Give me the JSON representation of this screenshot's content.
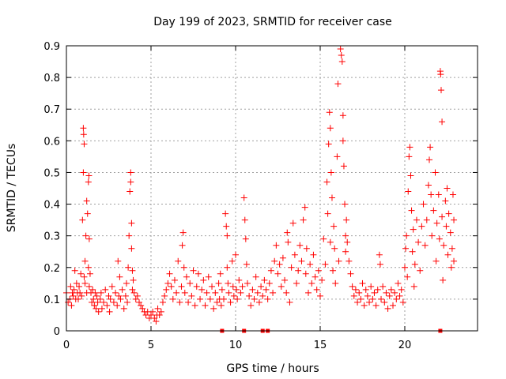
{
  "chart_data": {
    "type": "scatter",
    "title": "Day 199 of 2023, SRMTID for receiver case",
    "xlabel": "GPS time / hours",
    "ylabel": "SRMTID / TECUs",
    "xlim": [
      0,
      24.3
    ],
    "ylim": [
      0,
      0.9
    ],
    "xticks": [
      0,
      5,
      10,
      15,
      20
    ],
    "xtick_labels": [
      "0",
      "5",
      "10",
      "15",
      "20"
    ],
    "yticks": [
      0,
      0.1,
      0.2,
      0.3,
      0.4,
      0.5,
      0.6,
      0.7,
      0.8,
      0.9
    ],
    "ytick_labels": [
      "0",
      "0.1",
      "0.2",
      "0.3",
      "0.4",
      "0.5",
      "0.6",
      "0.7",
      "0.8",
      "0.9"
    ],
    "grid": true,
    "marker": "+",
    "color": "#ff0000",
    "series": [
      {
        "name": "SRMTID",
        "points": [
          [
            0.0,
            0.12
          ],
          [
            0.1,
            0.09
          ],
          [
            0.2,
            0.1
          ],
          [
            0.25,
            0.14
          ],
          [
            0.3,
            0.08
          ],
          [
            0.35,
            0.12
          ],
          [
            0.4,
            0.11
          ],
          [
            0.45,
            0.13
          ],
          [
            0.5,
            0.19
          ],
          [
            0.55,
            0.1
          ],
          [
            0.6,
            0.15
          ],
          [
            0.65,
            0.12
          ],
          [
            0.7,
            0.1
          ],
          [
            0.75,
            0.14
          ],
          [
            0.8,
            0.12
          ],
          [
            0.85,
            0.18
          ],
          [
            0.9,
            0.11
          ],
          [
            0.95,
            0.35
          ],
          [
            1.0,
            0.5
          ],
          [
            1.0,
            0.64
          ],
          [
            1.02,
            0.62
          ],
          [
            1.05,
            0.59
          ],
          [
            1.05,
            0.17
          ],
          [
            1.1,
            0.22
          ],
          [
            1.1,
            0.15
          ],
          [
            1.15,
            0.3
          ],
          [
            1.2,
            0.41
          ],
          [
            1.2,
            0.12
          ],
          [
            1.25,
            0.37
          ],
          [
            1.3,
            0.47
          ],
          [
            1.3,
            0.2
          ],
          [
            1.33,
            0.49
          ],
          [
            1.35,
            0.29
          ],
          [
            1.35,
            0.14
          ],
          [
            1.4,
            0.18
          ],
          [
            1.45,
            0.12
          ],
          [
            1.5,
            0.09
          ],
          [
            1.55,
            0.13
          ],
          [
            1.6,
            0.1
          ],
          [
            1.65,
            0.08
          ],
          [
            1.7,
            0.12
          ],
          [
            1.75,
            0.07
          ],
          [
            1.8,
            0.11
          ],
          [
            1.85,
            0.09
          ],
          [
            1.9,
            0.06
          ],
          [
            2.0,
            0.1
          ],
          [
            2.05,
            0.12
          ],
          [
            2.1,
            0.07
          ],
          [
            2.2,
            0.09
          ],
          [
            2.3,
            0.13
          ],
          [
            2.4,
            0.08
          ],
          [
            2.5,
            0.11
          ],
          [
            2.55,
            0.06
          ],
          [
            2.6,
            0.1
          ],
          [
            2.7,
            0.14
          ],
          [
            2.8,
            0.09
          ],
          [
            2.9,
            0.12
          ],
          [
            3.0,
            0.08
          ],
          [
            3.05,
            0.22
          ],
          [
            3.1,
            0.11
          ],
          [
            3.15,
            0.17
          ],
          [
            3.2,
            0.1
          ],
          [
            3.3,
            0.13
          ],
          [
            3.4,
            0.07
          ],
          [
            3.5,
            0.11
          ],
          [
            3.55,
            0.15
          ],
          [
            3.6,
            0.09
          ],
          [
            3.65,
            0.2
          ],
          [
            3.7,
            0.3
          ],
          [
            3.75,
            0.44
          ],
          [
            3.8,
            0.5
          ],
          [
            3.8,
            0.47
          ],
          [
            3.85,
            0.34
          ],
          [
            3.85,
            0.26
          ],
          [
            3.9,
            0.19
          ],
          [
            3.9,
            0.13
          ],
          [
            3.95,
            0.16
          ],
          [
            4.0,
            0.12
          ],
          [
            4.1,
            0.1
          ],
          [
            4.2,
            0.11
          ],
          [
            4.3,
            0.09
          ],
          [
            4.4,
            0.08
          ],
          [
            4.5,
            0.07
          ],
          [
            4.6,
            0.06
          ],
          [
            4.7,
            0.05
          ],
          [
            4.8,
            0.06
          ],
          [
            4.9,
            0.04
          ],
          [
            5.0,
            0.05
          ],
          [
            5.1,
            0.06
          ],
          [
            5.2,
            0.04
          ],
          [
            5.3,
            0.03
          ],
          [
            5.35,
            0.05
          ],
          [
            5.4,
            0.07
          ],
          [
            5.5,
            0.05
          ],
          [
            5.6,
            0.06
          ],
          [
            5.7,
            0.09
          ],
          [
            5.8,
            0.11
          ],
          [
            5.9,
            0.13
          ],
          [
            6.0,
            0.15
          ],
          [
            6.1,
            0.18
          ],
          [
            6.2,
            0.14
          ],
          [
            6.3,
            0.1
          ],
          [
            6.4,
            0.16
          ],
          [
            6.5,
            0.12
          ],
          [
            6.6,
            0.22
          ],
          [
            6.7,
            0.09
          ],
          [
            6.8,
            0.14
          ],
          [
            6.85,
            0.27
          ],
          [
            6.9,
            0.31
          ],
          [
            6.95,
            0.2
          ],
          [
            7.0,
            0.12
          ],
          [
            7.1,
            0.17
          ],
          [
            7.2,
            0.09
          ],
          [
            7.3,
            0.15
          ],
          [
            7.4,
            0.11
          ],
          [
            7.5,
            0.19
          ],
          [
            7.6,
            0.08
          ],
          [
            7.7,
            0.14
          ],
          [
            7.8,
            0.18
          ],
          [
            7.9,
            0.1
          ],
          [
            8.0,
            0.13
          ],
          [
            8.1,
            0.16
          ],
          [
            8.2,
            0.08
          ],
          [
            8.3,
            0.12
          ],
          [
            8.4,
            0.17
          ],
          [
            8.5,
            0.1
          ],
          [
            8.6,
            0.14
          ],
          [
            8.7,
            0.07
          ],
          [
            8.8,
            0.12
          ],
          [
            8.9,
            0.09
          ],
          [
            9.0,
            0.15
          ],
          [
            9.05,
            0.1
          ],
          [
            9.1,
            0.18
          ],
          [
            9.15,
            0.08
          ],
          [
            9.2,
            0.13
          ],
          [
            9.3,
            0.1
          ],
          [
            9.4,
            0.37
          ],
          [
            9.45,
            0.33
          ],
          [
            9.5,
            0.3
          ],
          [
            9.5,
            0.2
          ],
          [
            9.55,
            0.15
          ],
          [
            9.6,
            0.12
          ],
          [
            9.7,
            0.09
          ],
          [
            9.8,
            0.22
          ],
          [
            9.85,
            0.14
          ],
          [
            9.9,
            0.11
          ],
          [
            10.0,
            0.24
          ],
          [
            10.05,
            0.13
          ],
          [
            10.1,
            0.1
          ],
          [
            10.2,
            0.16
          ],
          [
            10.3,
            0.12
          ],
          [
            10.4,
            0.14
          ],
          [
            10.5,
            0.42
          ],
          [
            10.55,
            0.35
          ],
          [
            10.6,
            0.29
          ],
          [
            10.65,
            0.21
          ],
          [
            10.7,
            0.15
          ],
          [
            10.8,
            0.11
          ],
          [
            10.9,
            0.08
          ],
          [
            11.0,
            0.13
          ],
          [
            11.1,
            0.1
          ],
          [
            11.2,
            0.17
          ],
          [
            11.3,
            0.12
          ],
          [
            11.4,
            0.09
          ],
          [
            11.5,
            0.14
          ],
          [
            11.6,
            0.11
          ],
          [
            11.7,
            0.16
          ],
          [
            11.8,
            0.13
          ],
          [
            11.9,
            0.1
          ],
          [
            12.0,
            0.15
          ],
          [
            12.1,
            0.19
          ],
          [
            12.2,
            0.12
          ],
          [
            12.3,
            0.22
          ],
          [
            12.4,
            0.27
          ],
          [
            12.5,
            0.18
          ],
          [
            12.6,
            0.21
          ],
          [
            12.7,
            0.14
          ],
          [
            12.8,
            0.23
          ],
          [
            12.9,
            0.16
          ],
          [
            13.0,
            0.12
          ],
          [
            13.05,
            0.31
          ],
          [
            13.1,
            0.28
          ],
          [
            13.2,
            0.09
          ],
          [
            13.3,
            0.2
          ],
          [
            13.4,
            0.34
          ],
          [
            13.5,
            0.24
          ],
          [
            13.6,
            0.15
          ],
          [
            13.7,
            0.19
          ],
          [
            13.8,
            0.27
          ],
          [
            13.9,
            0.22
          ],
          [
            14.0,
            0.35
          ],
          [
            14.1,
            0.39
          ],
          [
            14.15,
            0.18
          ],
          [
            14.2,
            0.26
          ],
          [
            14.3,
            0.12
          ],
          [
            14.4,
            0.21
          ],
          [
            14.5,
            0.15
          ],
          [
            14.6,
            0.24
          ],
          [
            14.7,
            0.17
          ],
          [
            14.8,
            0.13
          ],
          [
            14.9,
            0.19
          ],
          [
            15.0,
            0.11
          ],
          [
            15.1,
            0.16
          ],
          [
            15.2,
            0.29
          ],
          [
            15.3,
            0.21
          ],
          [
            15.4,
            0.47
          ],
          [
            15.45,
            0.37
          ],
          [
            15.5,
            0.59
          ],
          [
            15.55,
            0.69
          ],
          [
            15.6,
            0.64
          ],
          [
            15.6,
            0.28
          ],
          [
            15.65,
            0.5
          ],
          [
            15.7,
            0.42
          ],
          [
            15.75,
            0.19
          ],
          [
            15.8,
            0.33
          ],
          [
            15.85,
            0.26
          ],
          [
            15.9,
            0.15
          ],
          [
            16.0,
            0.55
          ],
          [
            16.05,
            0.78
          ],
          [
            16.1,
            0.22
          ],
          [
            16.2,
            0.89
          ],
          [
            16.25,
            0.87
          ],
          [
            16.3,
            0.85
          ],
          [
            16.35,
            0.68
          ],
          [
            16.35,
            0.6
          ],
          [
            16.4,
            0.52
          ],
          [
            16.45,
            0.4
          ],
          [
            16.5,
            0.3
          ],
          [
            16.5,
            0.25
          ],
          [
            16.55,
            0.35
          ],
          [
            16.6,
            0.28
          ],
          [
            16.7,
            0.22
          ],
          [
            16.8,
            0.18
          ],
          [
            16.9,
            0.14
          ],
          [
            17.0,
            0.11
          ],
          [
            17.1,
            0.13
          ],
          [
            17.2,
            0.09
          ],
          [
            17.3,
            0.12
          ],
          [
            17.4,
            0.1
          ],
          [
            17.5,
            0.15
          ],
          [
            17.6,
            0.08
          ],
          [
            17.7,
            0.13
          ],
          [
            17.8,
            0.11
          ],
          [
            17.9,
            0.09
          ],
          [
            18.0,
            0.14
          ],
          [
            18.1,
            0.1
          ],
          [
            18.2,
            0.12
          ],
          [
            18.3,
            0.08
          ],
          [
            18.4,
            0.13
          ],
          [
            18.5,
            0.24
          ],
          [
            18.55,
            0.21
          ],
          [
            18.6,
            0.1
          ],
          [
            18.7,
            0.14
          ],
          [
            18.8,
            0.09
          ],
          [
            18.9,
            0.12
          ],
          [
            19.0,
            0.07
          ],
          [
            19.1,
            0.11
          ],
          [
            19.2,
            0.13
          ],
          [
            19.3,
            0.08
          ],
          [
            19.4,
            0.12
          ],
          [
            19.5,
            0.1
          ],
          [
            19.6,
            0.15
          ],
          [
            19.7,
            0.11
          ],
          [
            19.8,
            0.13
          ],
          [
            19.9,
            0.09
          ],
          [
            20.0,
            0.2
          ],
          [
            20.05,
            0.26
          ],
          [
            20.1,
            0.3
          ],
          [
            20.15,
            0.17
          ],
          [
            20.2,
            0.44
          ],
          [
            20.25,
            0.55
          ],
          [
            20.3,
            0.58
          ],
          [
            20.35,
            0.49
          ],
          [
            20.4,
            0.38
          ],
          [
            20.45,
            0.25
          ],
          [
            20.5,
            0.32
          ],
          [
            20.55,
            0.14
          ],
          [
            20.6,
            0.21
          ],
          [
            20.7,
            0.35
          ],
          [
            20.8,
            0.28
          ],
          [
            20.9,
            0.19
          ],
          [
            21.0,
            0.33
          ],
          [
            21.1,
            0.4
          ],
          [
            21.2,
            0.27
          ],
          [
            21.3,
            0.35
          ],
          [
            21.4,
            0.46
          ],
          [
            21.45,
            0.54
          ],
          [
            21.5,
            0.58
          ],
          [
            21.55,
            0.43
          ],
          [
            21.6,
            0.3
          ],
          [
            21.7,
            0.38
          ],
          [
            21.8,
            0.5
          ],
          [
            21.85,
            0.22
          ],
          [
            21.9,
            0.34
          ],
          [
            22.0,
            0.43
          ],
          [
            22.05,
            0.29
          ],
          [
            22.1,
            0.82
          ],
          [
            22.12,
            0.81
          ],
          [
            22.15,
            0.76
          ],
          [
            22.2,
            0.66
          ],
          [
            22.2,
            0.36
          ],
          [
            22.25,
            0.16
          ],
          [
            22.3,
            0.27
          ],
          [
            22.4,
            0.41
          ],
          [
            22.45,
            0.33
          ],
          [
            22.5,
            0.45
          ],
          [
            22.55,
            0.24
          ],
          [
            22.6,
            0.37
          ],
          [
            22.7,
            0.31
          ],
          [
            22.75,
            0.2
          ],
          [
            22.8,
            0.26
          ],
          [
            22.85,
            0.43
          ],
          [
            22.9,
            0.35
          ],
          [
            22.9,
            0.22
          ],
          [
            9.2,
            0
          ],
          [
            10.5,
            0
          ],
          [
            11.6,
            0
          ],
          [
            11.9,
            0
          ],
          [
            22.1,
            0
          ]
        ]
      }
    ]
  }
}
